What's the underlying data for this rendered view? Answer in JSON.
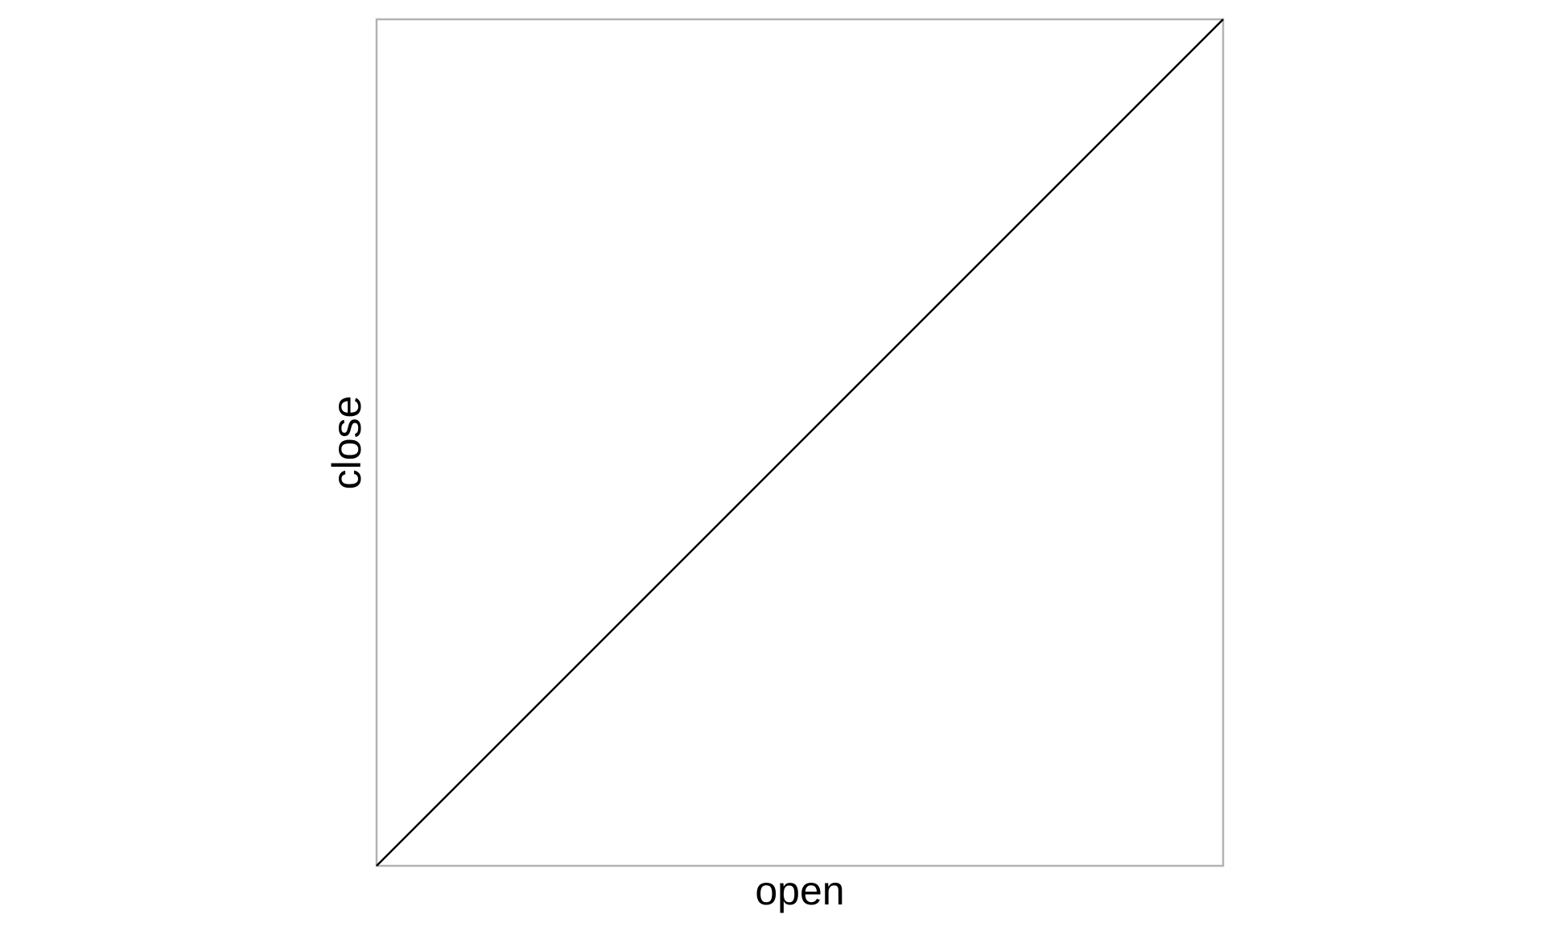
{
  "chart_data": {
    "type": "line",
    "title": "",
    "xlabel": "open",
    "ylabel": "close",
    "xlim": [
      0,
      1
    ],
    "ylim": [
      0,
      1
    ],
    "grid": false,
    "x": [
      0,
      1
    ],
    "series": [
      {
        "values": [
          0,
          1
        ],
        "color": "#000000"
      }
    ],
    "frame_color": "#b3b3b3"
  }
}
